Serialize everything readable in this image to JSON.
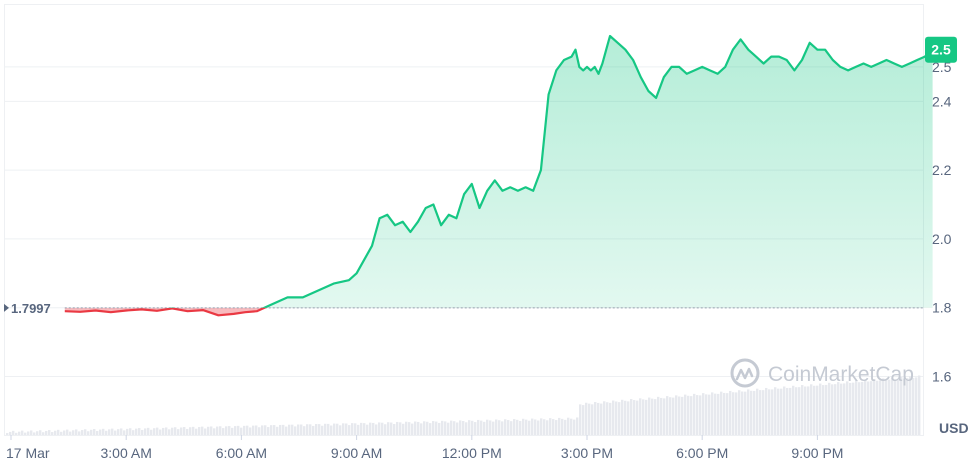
{
  "watermark": {
    "text": "CoinMarketCap"
  },
  "colors": {
    "up": "#16c784",
    "down": "#ea3943",
    "grid": "#eef0f3",
    "volume": "#e7e9ee",
    "text": "#58667e"
  },
  "chart_data": {
    "type": "area",
    "currency_label": "USD",
    "reference_price": 1.7997,
    "reference_label": "1.7997",
    "current_price_label": "2.5",
    "ylim": [
      1.43,
      2.68
    ],
    "yticks": [
      1.6,
      1.8,
      2.0,
      2.2,
      2.4,
      2.5
    ],
    "ytick_labels": [
      "1.6",
      "1.8",
      "2.0",
      "2.2",
      "2.4",
      "2.5"
    ],
    "xlim": [
      0,
      24.1
    ],
    "xticks": [
      0,
      3,
      6,
      9,
      12,
      15,
      18,
      21
    ],
    "xtick_labels": [
      "17 Mar",
      "3:00 AM",
      "6:00 AM",
      "9:00 AM",
      "12:00 PM",
      "3:00 PM",
      "6:00 PM",
      "9:00 PM"
    ],
    "grid": true,
    "price_series": {
      "x": [
        1.4,
        1.8,
        2.2,
        2.6,
        3.0,
        3.4,
        3.8,
        4.2,
        4.6,
        5.0,
        5.4,
        5.8,
        6.1,
        6.4,
        6.8,
        7.2,
        7.6,
        8.0,
        8.4,
        8.8,
        9.0,
        9.2,
        9.4,
        9.6,
        9.8,
        10.0,
        10.2,
        10.4,
        10.6,
        10.8,
        11.0,
        11.2,
        11.4,
        11.6,
        11.8,
        12.0,
        12.2,
        12.4,
        12.6,
        12.8,
        13.0,
        13.2,
        13.4,
        13.6,
        13.8,
        14.0,
        14.2,
        14.4,
        14.6,
        14.7,
        14.8,
        14.9,
        15.0,
        15.1,
        15.2,
        15.3,
        15.4,
        15.5,
        15.6,
        15.8,
        16.0,
        16.2,
        16.4,
        16.6,
        16.8,
        17.0,
        17.2,
        17.4,
        17.6,
        17.8,
        18.0,
        18.2,
        18.4,
        18.6,
        18.8,
        19.0,
        19.2,
        19.4,
        19.6,
        19.8,
        20.0,
        20.2,
        20.4,
        20.6,
        20.8,
        21.0,
        21.2,
        21.4,
        21.6,
        21.8,
        22.0,
        22.2,
        22.4,
        22.6,
        22.8,
        23.0,
        23.2,
        23.4,
        23.6,
        23.8,
        23.9,
        24.0
      ],
      "y": [
        1.79,
        1.788,
        1.792,
        1.787,
        1.792,
        1.795,
        1.791,
        1.798,
        1.79,
        1.793,
        1.778,
        1.782,
        1.787,
        1.79,
        1.81,
        1.83,
        1.83,
        1.85,
        1.87,
        1.88,
        1.9,
        1.94,
        1.98,
        2.06,
        2.07,
        2.04,
        2.05,
        2.02,
        2.05,
        2.09,
        2.1,
        2.04,
        2.07,
        2.06,
        2.13,
        2.16,
        2.09,
        2.14,
        2.17,
        2.14,
        2.15,
        2.14,
        2.15,
        2.14,
        2.2,
        2.42,
        2.49,
        2.52,
        2.53,
        2.55,
        2.5,
        2.49,
        2.5,
        2.49,
        2.5,
        2.48,
        2.51,
        2.55,
        2.59,
        2.57,
        2.55,
        2.52,
        2.47,
        2.43,
        2.41,
        2.47,
        2.5,
        2.5,
        2.48,
        2.49,
        2.5,
        2.49,
        2.48,
        2.5,
        2.55,
        2.58,
        2.55,
        2.53,
        2.51,
        2.53,
        2.53,
        2.52,
        2.49,
        2.52,
        2.57,
        2.55,
        2.55,
        2.52,
        2.5,
        2.49,
        2.5,
        2.51,
        2.5,
        2.51,
        2.52,
        2.51,
        2.5,
        2.51,
        2.52,
        2.53,
        2.54,
        2.55
      ]
    }
  }
}
